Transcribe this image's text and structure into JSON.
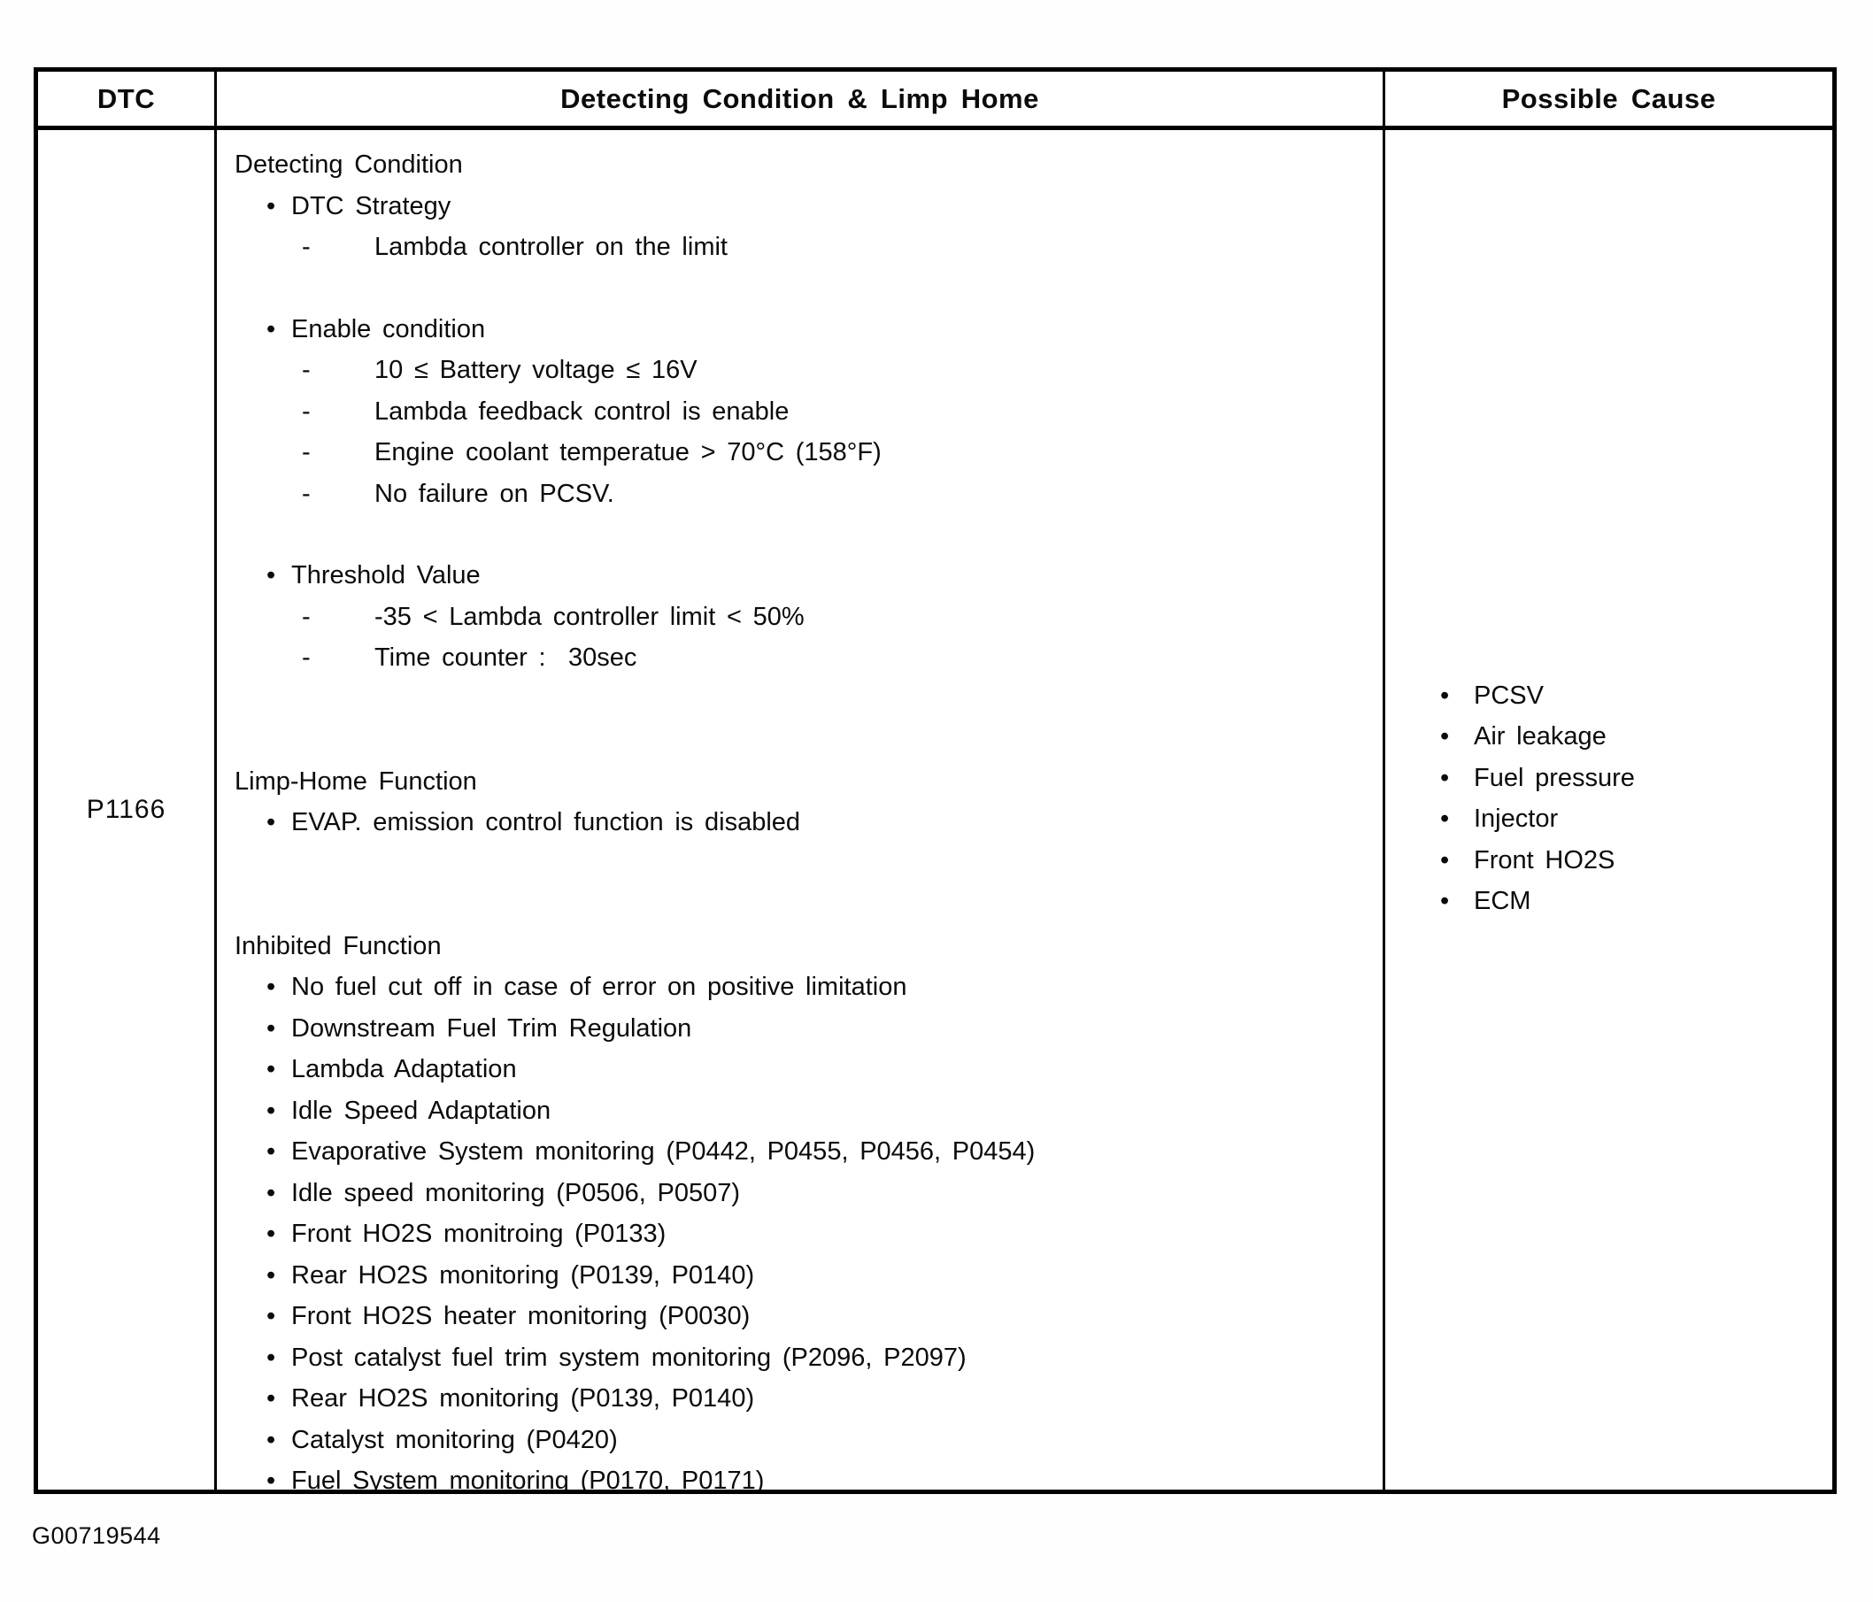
{
  "markers": {
    "bullet": "•",
    "dash": "-"
  },
  "figure_id": "G00719544",
  "table": {
    "headers": {
      "dtc": "DTC",
      "condition": "Detecting Condition & Limp Home",
      "cause": "Possible Cause"
    },
    "row": {
      "dtc_code": "P1166",
      "detecting_condition": {
        "title": "Detecting Condition",
        "groups": [
          {
            "label": "DTC Strategy",
            "items": [
              "Lambda controller on the limit"
            ]
          },
          {
            "label": "Enable condition",
            "items": [
              "10 ≤ Battery voltage ≤ 16V",
              "Lambda feedback control is enable",
              "Engine coolant temperatue > 70°C (158°F)",
              "No failure on PCSV."
            ]
          },
          {
            "label": "Threshold Value",
            "items": [
              "-35 < Lambda controller limit < 50%",
              "Time counter :  30sec"
            ]
          }
        ]
      },
      "limp_home": {
        "title": "Limp-Home Function",
        "items": [
          "EVAP. emission control function is disabled"
        ]
      },
      "inhibited": {
        "title": "Inhibited Function",
        "items": [
          "No fuel cut off in case of error on positive limitation",
          "Downstream Fuel Trim Regulation",
          "Lambda Adaptation",
          "Idle Speed Adaptation",
          "Evaporative System monitoring (P0442, P0455, P0456, P0454)",
          "Idle speed monitoring (P0506, P0507)",
          "Front HO2S monitroing (P0133)",
          "Rear HO2S monitoring (P0139, P0140)",
          "Front HO2S heater monitoring (P0030)",
          "Post catalyst fuel trim system monitoring (P2096, P2097)",
          "Rear HO2S monitoring (P0139, P0140)",
          "Catalyst monitoring (P0420)",
          "Fuel System monitoring (P0170, P0171)"
        ]
      },
      "possible_causes": [
        "PCSV",
        "Air leakage",
        "Fuel pressure",
        "Injector",
        "Front HO2S",
        "ECM"
      ]
    }
  }
}
